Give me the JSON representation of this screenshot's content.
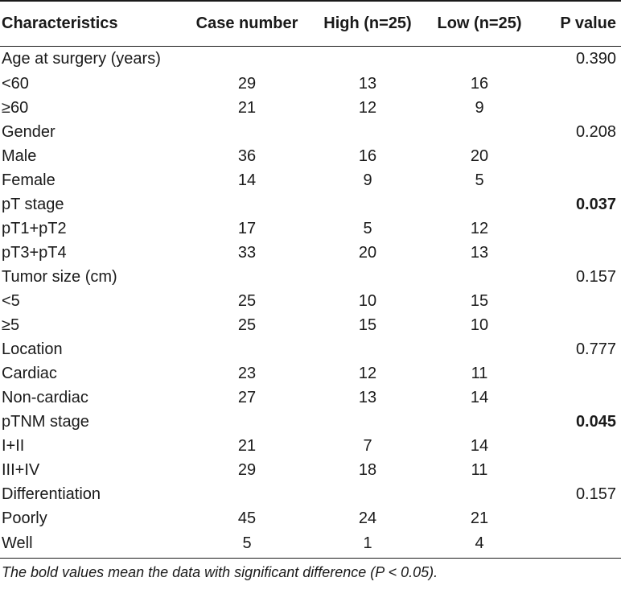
{
  "table": {
    "headers": [
      "Characteristics",
      "Case number",
      "High (n=25)",
      "Low (n=25)",
      "P value"
    ],
    "rows": [
      {
        "label": "Age at surgery (years)",
        "case": "",
        "high": "",
        "low": "",
        "p": "0.390",
        "p_bold": false
      },
      {
        "label": "<60",
        "case": "29",
        "high": "13",
        "low": "16",
        "p": "",
        "p_bold": false
      },
      {
        "label": "≥60",
        "case": "21",
        "high": "12",
        "low": "9",
        "p": "",
        "p_bold": false
      },
      {
        "label": "Gender",
        "case": "",
        "high": "",
        "low": "",
        "p": "0.208",
        "p_bold": false
      },
      {
        "label": "Male",
        "case": "36",
        "high": "16",
        "low": "20",
        "p": "",
        "p_bold": false
      },
      {
        "label": "Female",
        "case": "14",
        "high": "9",
        "low": "5",
        "p": "",
        "p_bold": false
      },
      {
        "label": "pT stage",
        "case": "",
        "high": "",
        "low": "",
        "p": "0.037",
        "p_bold": true
      },
      {
        "label": "pT1+pT2",
        "case": "17",
        "high": "5",
        "low": "12",
        "p": "",
        "p_bold": false
      },
      {
        "label": "pT3+pT4",
        "case": "33",
        "high": "20",
        "low": "13",
        "p": "",
        "p_bold": false
      },
      {
        "label": "Tumor size (cm)",
        "case": "",
        "high": "",
        "low": "",
        "p": "0.157",
        "p_bold": false
      },
      {
        "label": "<5",
        "case": "25",
        "high": "10",
        "low": "15",
        "p": "",
        "p_bold": false
      },
      {
        "label": "≥5",
        "case": "25",
        "high": "15",
        "low": "10",
        "p": "",
        "p_bold": false
      },
      {
        "label": "Location",
        "case": "",
        "high": "",
        "low": "",
        "p": "0.777",
        "p_bold": false
      },
      {
        "label": "Cardiac",
        "case": "23",
        "high": "12",
        "low": "11",
        "p": "",
        "p_bold": false
      },
      {
        "label": "Non-cardiac",
        "case": "27",
        "high": "13",
        "low": "14",
        "p": "",
        "p_bold": false
      },
      {
        "label": "pTNM stage",
        "case": "",
        "high": "",
        "low": "",
        "p": "0.045",
        "p_bold": true
      },
      {
        "label": "I+II",
        "case": "21",
        "high": "7",
        "low": "14",
        "p": "",
        "p_bold": false
      },
      {
        "label": "III+IV",
        "case": "29",
        "high": "18",
        "low": "11",
        "p": "",
        "p_bold": false
      },
      {
        "label": "Differentiation",
        "case": "",
        "high": "",
        "low": "",
        "p": "0.157",
        "p_bold": false
      },
      {
        "label": "Poorly",
        "case": "45",
        "high": "24",
        "low": "21",
        "p": "",
        "p_bold": false
      },
      {
        "label": "Well",
        "case": "5",
        "high": "1",
        "low": "4",
        "p": "",
        "p_bold": false
      }
    ]
  },
  "footnote": "The bold values mean the data with significant difference (P < 0.05)."
}
